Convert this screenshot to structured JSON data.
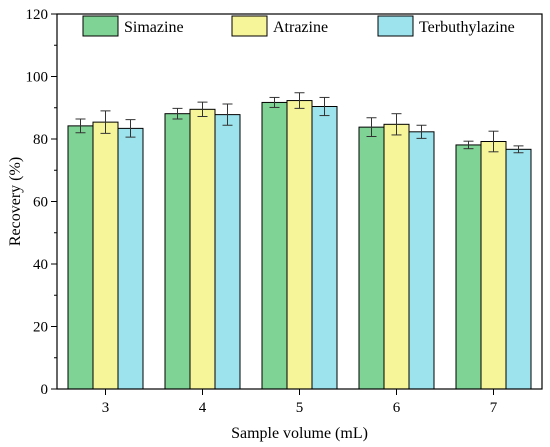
{
  "chart_data": {
    "type": "bar",
    "title": "",
    "xlabel": "Sample volume (mL)",
    "ylabel": "Recovery (%)",
    "ylim": [
      0,
      120
    ],
    "yticks": [
      0,
      20,
      40,
      60,
      80,
      100,
      120
    ],
    "categories": [
      "3",
      "4",
      "5",
      "6",
      "7"
    ],
    "grid": false,
    "legend_position": "top",
    "series": [
      {
        "name": "Simazine",
        "color": "#7fd394",
        "values": [
          84.2,
          88.1,
          91.7,
          83.8,
          78.1
        ],
        "errors": [
          2.2,
          1.7,
          1.6,
          3.0,
          1.2
        ]
      },
      {
        "name": "Atrazine",
        "color": "#f7f59a",
        "values": [
          85.4,
          89.5,
          92.3,
          84.7,
          79.2
        ],
        "errors": [
          3.6,
          2.3,
          2.5,
          3.4,
          3.3
        ]
      },
      {
        "name": "Terbuthylazine",
        "color": "#9de3ee",
        "values": [
          83.4,
          87.8,
          90.4,
          82.3,
          76.7
        ],
        "errors": [
          2.8,
          3.4,
          2.9,
          2.1,
          1.1
        ]
      }
    ]
  }
}
